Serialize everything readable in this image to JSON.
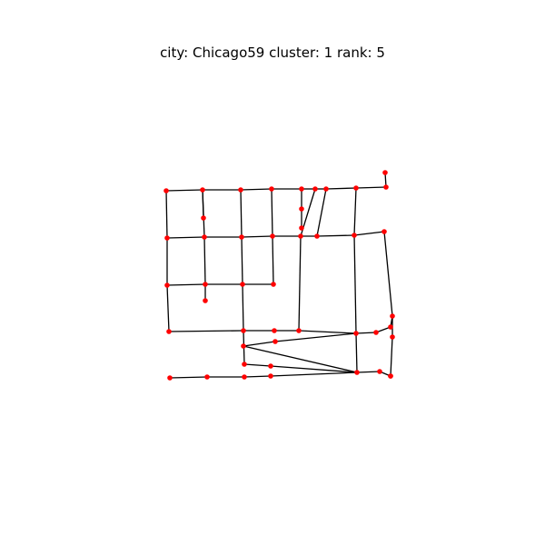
{
  "title": "city: Chicago59 cluster: 1 rank: 5",
  "colors": {
    "node": "#ff0000",
    "edge": "#000000",
    "background": "#ffffff"
  },
  "graph": {
    "nodes": [
      {
        "id": "n0"
      },
      {
        "id": "n1"
      },
      {
        "id": "n2"
      },
      {
        "id": "n3"
      },
      {
        "id": "n4"
      },
      {
        "id": "n5"
      },
      {
        "id": "n6"
      },
      {
        "id": "n7"
      },
      {
        "id": "n8"
      },
      {
        "id": "n9"
      },
      {
        "id": "n10"
      },
      {
        "id": "n11"
      },
      {
        "id": "n12"
      },
      {
        "id": "n13"
      },
      {
        "id": "n14"
      },
      {
        "id": "n15"
      },
      {
        "id": "n16"
      },
      {
        "id": "n17"
      },
      {
        "id": "n18"
      },
      {
        "id": "n19"
      },
      {
        "id": "n20"
      },
      {
        "id": "n21"
      },
      {
        "id": "n22"
      },
      {
        "id": "n23"
      },
      {
        "id": "n24"
      },
      {
        "id": "n25"
      },
      {
        "id": "n26"
      },
      {
        "id": "n27"
      },
      {
        "id": "n28"
      },
      {
        "id": "n29"
      },
      {
        "id": "n30"
      },
      {
        "id": "n31"
      },
      {
        "id": "n32"
      },
      {
        "id": "n33"
      },
      {
        "id": "n34"
      },
      {
        "id": "n35"
      },
      {
        "id": "n36"
      },
      {
        "id": "n37"
      },
      {
        "id": "n38"
      },
      {
        "id": "n39"
      },
      {
        "id": "n40"
      },
      {
        "id": "n41"
      },
      {
        "id": "n42"
      },
      {
        "id": "n43"
      },
      {
        "id": "n44"
      },
      {
        "id": "n45"
      },
      {
        "id": "n46"
      },
      {
        "id": "n47"
      },
      {
        "id": "n48"
      },
      {
        "id": "n49"
      }
    ],
    "edges": [
      [
        "n0",
        "n1"
      ],
      [
        "n1",
        "n2"
      ],
      [
        "n2",
        "n3"
      ],
      [
        "n3",
        "n4"
      ],
      [
        "n4",
        "n5"
      ],
      [
        "n5",
        "n6"
      ],
      [
        "n6",
        "n7"
      ],
      [
        "n7",
        "n8"
      ],
      [
        "n8",
        "n9"
      ],
      [
        "n1",
        "n10"
      ],
      [
        "n4",
        "n11"
      ],
      [
        "n11",
        "n12"
      ],
      [
        "n6",
        "n18"
      ],
      [
        "n13",
        "n14"
      ],
      [
        "n14",
        "n15"
      ],
      [
        "n15",
        "n16"
      ],
      [
        "n16",
        "n17"
      ],
      [
        "n17",
        "n18"
      ],
      [
        "n18",
        "n19"
      ],
      [
        "n19",
        "n20"
      ],
      [
        "n20",
        "n49"
      ],
      [
        "n21",
        "n22"
      ],
      [
        "n22",
        "n23"
      ],
      [
        "n23",
        "n24"
      ],
      [
        "n22",
        "n25"
      ],
      [
        "n0",
        "n13"
      ],
      [
        "n13",
        "n21"
      ],
      [
        "n21",
        "n26"
      ],
      [
        "n1",
        "n14"
      ],
      [
        "n14",
        "n22"
      ],
      [
        "n2",
        "n15"
      ],
      [
        "n15",
        "n23"
      ],
      [
        "n23",
        "n27"
      ],
      [
        "n3",
        "n16"
      ],
      [
        "n16",
        "n24"
      ],
      [
        "n5",
        "n17"
      ],
      [
        "n17",
        "n29"
      ],
      [
        "n7",
        "n19"
      ],
      [
        "n19",
        "n30"
      ],
      [
        "n26",
        "n27"
      ],
      [
        "n27",
        "n28"
      ],
      [
        "n28",
        "n29"
      ],
      [
        "n29",
        "n30"
      ],
      [
        "n30",
        "n31"
      ],
      [
        "n31",
        "n32"
      ],
      [
        "n32",
        "n49"
      ],
      [
        "n33",
        "n49"
      ],
      [
        "n33",
        "n34"
      ],
      [
        "n30",
        "n35"
      ],
      [
        "n35",
        "n36"
      ],
      [
        "n36",
        "n38"
      ],
      [
        "n30",
        "n38"
      ],
      [
        "n27",
        "n39"
      ],
      [
        "n39",
        "n40"
      ],
      [
        "n40",
        "n38"
      ],
      [
        "n41",
        "n42"
      ],
      [
        "n42",
        "n43"
      ],
      [
        "n43",
        "n44"
      ],
      [
        "n44",
        "n38"
      ],
      [
        "n38",
        "n45"
      ],
      [
        "n45",
        "n46"
      ],
      [
        "n46",
        "n34"
      ]
    ]
  }
}
